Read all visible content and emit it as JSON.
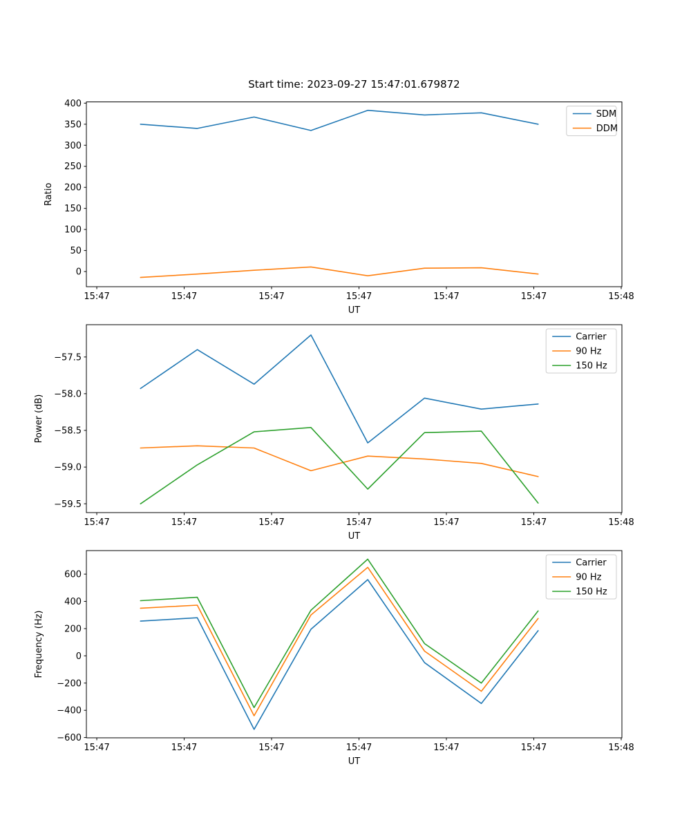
{
  "figure": {
    "title": "Start time: 2023-09-27 15:47:01.679872",
    "background_color": "#ffffff",
    "text_color": "#000000"
  },
  "palette": {
    "blue": "#1f77b4",
    "orange": "#ff7f0e",
    "green": "#2ca02c",
    "legend_border": "#cccccc"
  },
  "chart_data": [
    {
      "type": "line",
      "name": "ratio-plot",
      "title": "",
      "xlabel": "UT",
      "ylabel": "Ratio",
      "grid": false,
      "legend_position": "upper right",
      "x_seconds_after_1547": [
        5,
        11.5,
        18,
        24.5,
        31,
        37.5,
        44,
        50.5
      ],
      "xlim": [
        -1.19,
        60.08
      ],
      "ylim": [
        -36,
        403
      ],
      "xticks": {
        "values": [
          0,
          10,
          20,
          30,
          40,
          50,
          60
        ],
        "labels": [
          "15:47",
          "15:47",
          "15:47",
          "15:47",
          "15:47",
          "15:47",
          "15:48"
        ]
      },
      "yticks": {
        "values": [
          0,
          50,
          100,
          150,
          200,
          250,
          300,
          350,
          400
        ],
        "labels": [
          "0",
          "50",
          "100",
          "150",
          "200",
          "250",
          "300",
          "350",
          "400"
        ]
      },
      "series": [
        {
          "name": "SDM",
          "color": "#1f77b4",
          "values": [
            350,
            340,
            367,
            335,
            383,
            372,
            377,
            350
          ]
        },
        {
          "name": "DDM",
          "color": "#ff7f0e",
          "values": [
            -14,
            -6,
            3,
            11,
            -10,
            8,
            9,
            -6
          ]
        }
      ]
    },
    {
      "type": "line",
      "name": "power-plot",
      "title": "",
      "xlabel": "UT",
      "ylabel": "Power (dB)",
      "grid": false,
      "legend_position": "upper right",
      "x_seconds_after_1547": [
        5,
        11.5,
        18,
        24.5,
        31,
        37.5,
        44,
        50.5
      ],
      "xlim": [
        -1.19,
        60.08
      ],
      "ylim": [
        -59.62,
        -57.06
      ],
      "xticks": {
        "values": [
          0,
          10,
          20,
          30,
          40,
          50,
          60
        ],
        "labels": [
          "15:47",
          "15:47",
          "15:47",
          "15:47",
          "15:47",
          "15:47",
          "15:48"
        ]
      },
      "yticks": {
        "values": [
          -59.5,
          -59.0,
          -58.5,
          -58.0,
          -57.5
        ],
        "labels": [
          "−59.5",
          "−59.0",
          "−58.5",
          "−58.0",
          "−57.5"
        ]
      },
      "series": [
        {
          "name": "Carrier",
          "color": "#1f77b4",
          "values": [
            -57.93,
            -57.4,
            -57.87,
            -57.2,
            -58.67,
            -58.06,
            -58.21,
            -58.14
          ]
        },
        {
          "name": "90 Hz",
          "color": "#ff7f0e",
          "values": [
            -58.74,
            -58.71,
            -58.74,
            -59.05,
            -58.85,
            -58.89,
            -58.95,
            -59.13
          ]
        },
        {
          "name": "150 Hz",
          "color": "#2ca02c",
          "values": [
            -59.5,
            -58.97,
            -58.52,
            -58.46,
            -59.3,
            -58.53,
            -58.51,
            -59.49
          ]
        }
      ]
    },
    {
      "type": "line",
      "name": "frequency-plot",
      "title": "",
      "xlabel": "UT",
      "ylabel": "Frequency (Hz)",
      "grid": false,
      "legend_position": "upper right",
      "x_seconds_after_1547": [
        5,
        11.5,
        18,
        24.5,
        31,
        37.5,
        44,
        50.5
      ],
      "xlim": [
        -1.19,
        60.08
      ],
      "ylim": [
        -602,
        773
      ],
      "xticks": {
        "values": [
          0,
          10,
          20,
          30,
          40,
          50,
          60
        ],
        "labels": [
          "15:47",
          "15:47",
          "15:47",
          "15:47",
          "15:47",
          "15:47",
          "15:48"
        ]
      },
      "yticks": {
        "values": [
          -600,
          -400,
          -200,
          0,
          200,
          400,
          600
        ],
        "labels": [
          "−600",
          "−400",
          "−200",
          "0",
          "200",
          "400",
          "600"
        ]
      },
      "series": [
        {
          "name": "Carrier",
          "color": "#1f77b4",
          "values": [
            255,
            280,
            -540,
            195,
            560,
            -50,
            -350,
            185
          ]
        },
        {
          "name": "90 Hz",
          "color": "#ff7f0e",
          "values": [
            350,
            372,
            -440,
            300,
            650,
            35,
            -260,
            275
          ]
        },
        {
          "name": "150 Hz",
          "color": "#2ca02c",
          "values": [
            405,
            430,
            -380,
            335,
            710,
            90,
            -200,
            330
          ]
        }
      ]
    }
  ]
}
